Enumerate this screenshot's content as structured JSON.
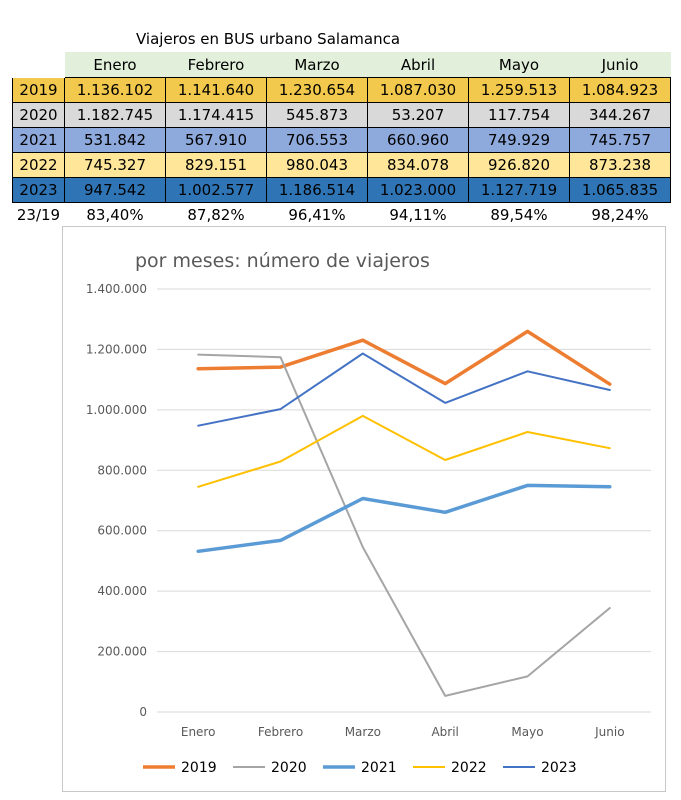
{
  "table": {
    "title": "Viajeros en BUS urbano Salamanca",
    "months": [
      "Enero",
      "Febrero",
      "Marzo",
      "Abril",
      "Mayo",
      "Junio"
    ],
    "rows": [
      {
        "year": "2019",
        "color": "#f2c94c",
        "values": [
          "1.136.102",
          "1.141.640",
          "1.230.654",
          "1.087.030",
          "1.259.513",
          "1.084.923"
        ]
      },
      {
        "year": "2020",
        "color": "#d9d9d9",
        "values": [
          "1.182.745",
          "1.174.415",
          "545.873",
          "53.207",
          "117.754",
          "344.267"
        ]
      },
      {
        "year": "2021",
        "color": "#8ea9db",
        "values": [
          "531.842",
          "567.910",
          "706.553",
          "660.960",
          "749.929",
          "745.757"
        ]
      },
      {
        "year": "2022",
        "color": "#ffe699",
        "values": [
          "745.327",
          "829.151",
          "980.043",
          "834.078",
          "926.820",
          "873.238"
        ]
      },
      {
        "year": "2023",
        "color": "#2f75b5",
        "values": [
          "947.542",
          "1.002.577",
          "1.186.514",
          "1.023.000",
          "1.127.719",
          "1.065.835"
        ]
      }
    ],
    "ratio_row": {
      "label": "23/19",
      "values": [
        "83,40%",
        "87,82%",
        "96,41%",
        "94,11%",
        "89,54%",
        "98,24%"
      ]
    }
  },
  "chart_data": {
    "type": "line",
    "title": "por meses: número de viajeros",
    "categories": [
      "Enero",
      "Febrero",
      "Marzo",
      "Abril",
      "Mayo",
      "Junio"
    ],
    "ylim": [
      0,
      1400000
    ],
    "yticks": [
      0,
      200000,
      400000,
      600000,
      800000,
      1000000,
      1200000,
      1400000
    ],
    "ytick_labels": [
      "0",
      "200.000",
      "400.000",
      "600.000",
      "800.000",
      "1.000.000",
      "1.200.000",
      "1.400.000"
    ],
    "grid": true,
    "legend_position": "bottom",
    "series": [
      {
        "name": "2019",
        "color": "#ed7d31",
        "values": [
          1136102,
          1141640,
          1230654,
          1087030,
          1259513,
          1084923
        ]
      },
      {
        "name": "2020",
        "color": "#a5a5a5",
        "values": [
          1182745,
          1174415,
          545873,
          53207,
          117754,
          344267
        ]
      },
      {
        "name": "2021",
        "color": "#5b9bd5",
        "values": [
          531842,
          567910,
          706553,
          660960,
          749929,
          745757
        ]
      },
      {
        "name": "2022",
        "color": "#ffc000",
        "values": [
          745327,
          829151,
          980043,
          834078,
          926820,
          873238
        ]
      },
      {
        "name": "2023",
        "color": "#4472c4",
        "values": [
          947542,
          1002577,
          1186514,
          1023000,
          1127719,
          1065835
        ]
      }
    ]
  }
}
